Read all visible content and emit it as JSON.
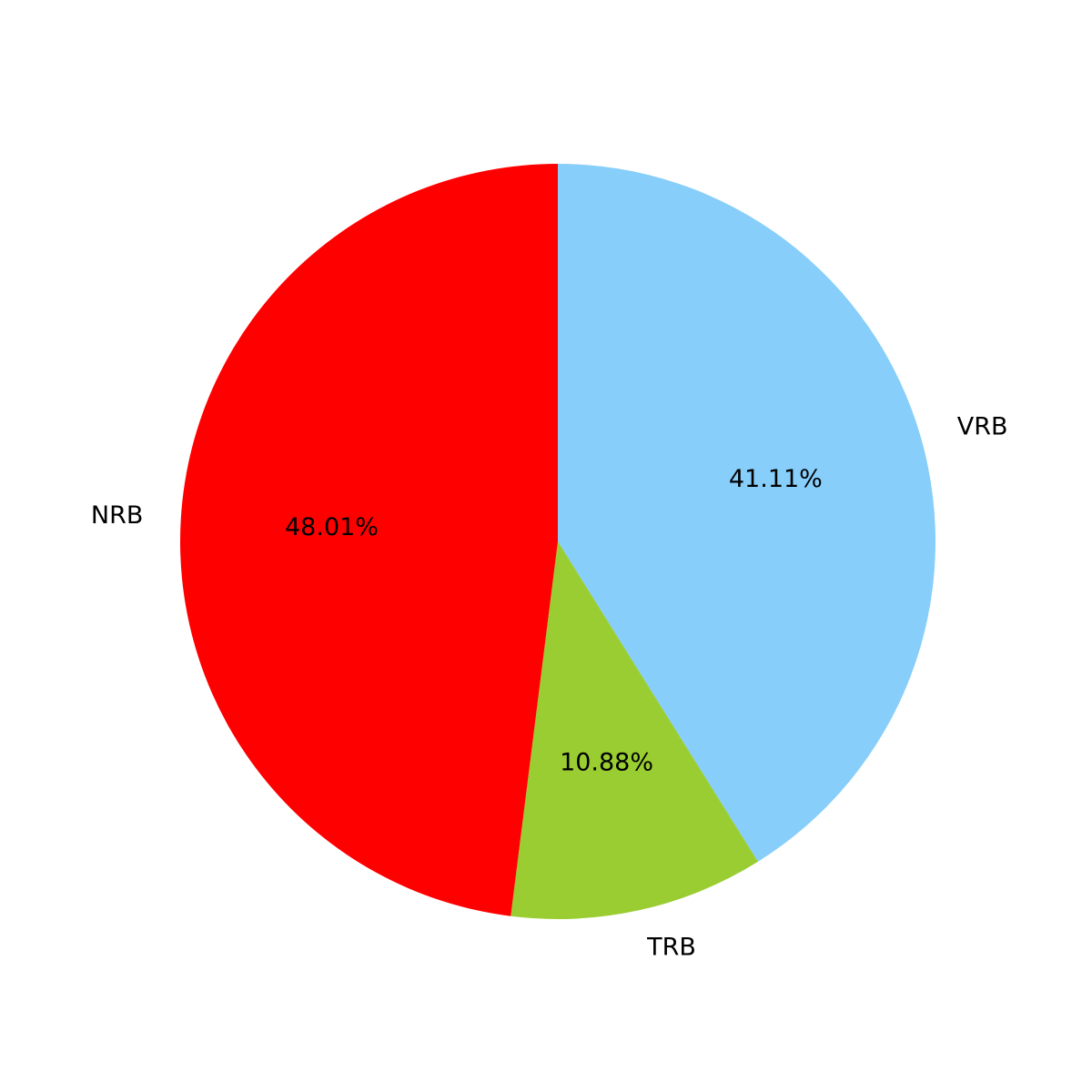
{
  "chart_data": {
    "type": "pie",
    "title": "",
    "slices": [
      {
        "label": "VRB",
        "value": 41.11,
        "pct_text": "41.11%",
        "color": "#87CEFA"
      },
      {
        "label": "TRB",
        "value": 10.88,
        "pct_text": "10.88%",
        "color": "#9ACD32"
      },
      {
        "label": "NRB",
        "value": 48.01,
        "pct_text": "48.01%",
        "color": "#FF0000"
      }
    ],
    "start_angle_deg": 90,
    "direction": "clockwise",
    "legend": "none"
  }
}
